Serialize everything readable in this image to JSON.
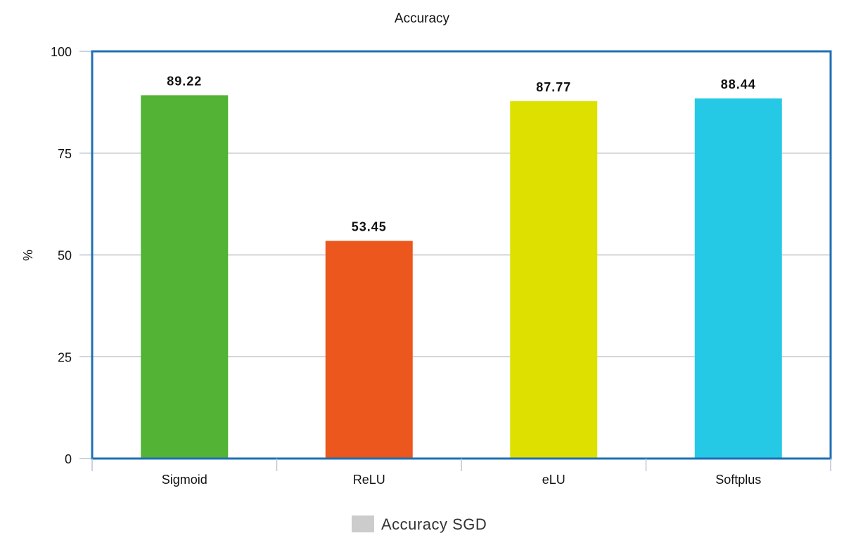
{
  "chart_data": {
    "type": "bar",
    "title": "Accuracy",
    "xlabel": "",
    "ylabel": "%",
    "ylim": [
      0,
      100
    ],
    "yticks": [
      0,
      25,
      50,
      75,
      100
    ],
    "grid": true,
    "legend_position": "bottom",
    "categories": [
      "Sigmoid",
      "ReLU",
      "eLU",
      "Softplus"
    ],
    "series": [
      {
        "name": "Accuracy SGD",
        "values": [
          89.22,
          53.45,
          87.77,
          88.44
        ],
        "labels": [
          "89.22",
          "53.45",
          "87.77",
          "88.44"
        ],
        "colors": [
          "#52b335",
          "#eb571d",
          "#dee000",
          "#26c9e5"
        ]
      }
    ],
    "legend_color": "#cccccc",
    "axis_color": "#1f6fb5"
  }
}
